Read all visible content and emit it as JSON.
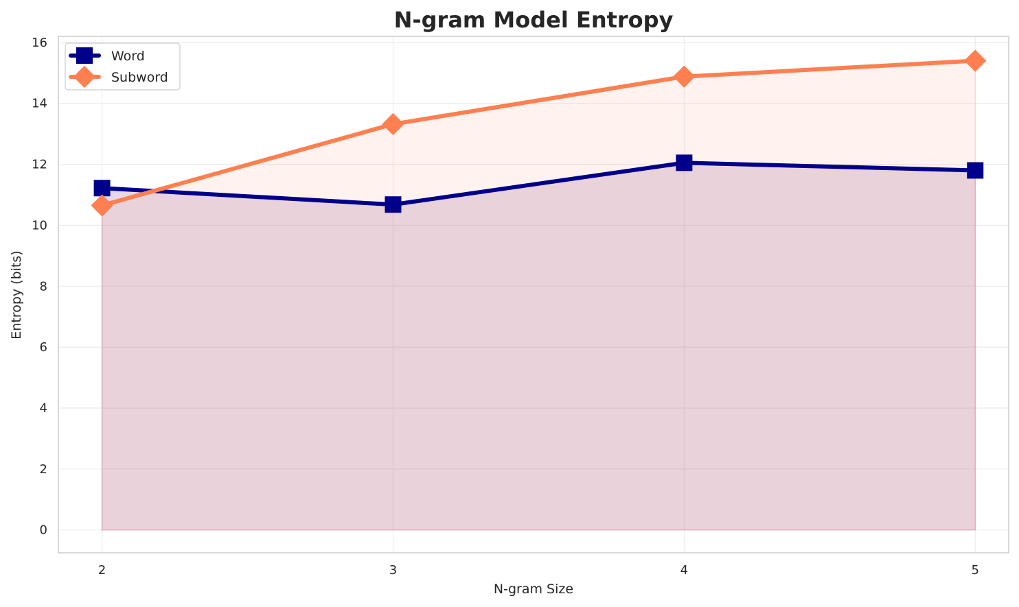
{
  "chart_data": {
    "type": "line",
    "title": "N-gram Model Entropy",
    "xlabel": "N-gram Size",
    "ylabel": "Entropy (bits)",
    "x": [
      2,
      3,
      4,
      5
    ],
    "x_tick_labels": [
      "2",
      "3",
      "4",
      "5"
    ],
    "y_ticks": [
      0,
      2,
      4,
      6,
      8,
      10,
      12,
      14,
      16
    ],
    "y_tick_labels": [
      "0",
      "2",
      "4",
      "6",
      "8",
      "10",
      "12",
      "14",
      "16"
    ],
    "xlim": [
      1.85,
      5.115
    ],
    "ylim": [
      -0.75,
      16.2
    ],
    "grid": true,
    "legend_position": "upper-left",
    "series": [
      {
        "name": "Word",
        "values": [
          11.22,
          10.68,
          12.05,
          11.8
        ],
        "color": "#00008b",
        "marker": "square",
        "fill_color": "#8b4c8b"
      },
      {
        "name": "Subword",
        "values": [
          10.65,
          13.32,
          14.88,
          15.4
        ],
        "color": "#ff7f50",
        "marker": "diamond",
        "fill_color": "#ffb8a8"
      }
    ]
  }
}
